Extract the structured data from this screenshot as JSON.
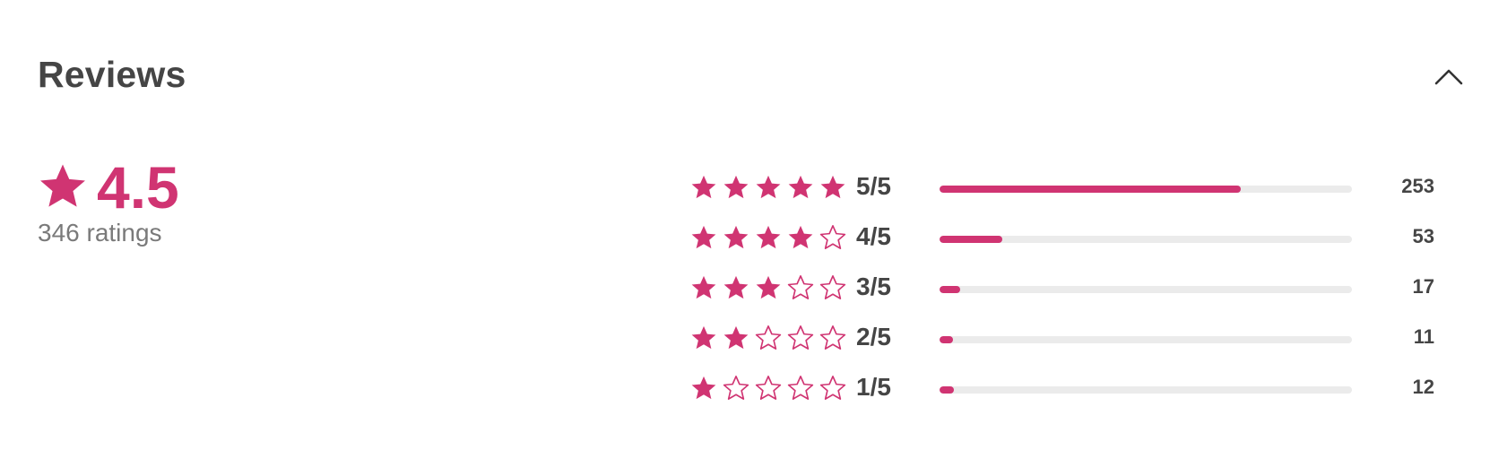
{
  "header": {
    "title": "Reviews",
    "collapse_icon": "chevron-up-icon"
  },
  "summary": {
    "average": "4.5",
    "ratings_text": "346 ratings",
    "star_icon": "star-filled-icon"
  },
  "accent_color": "#d03472",
  "breakdown": [
    {
      "stars": 5,
      "label": "5/5",
      "count": "253",
      "fraction": 0.73
    },
    {
      "stars": 4,
      "label": "4/5",
      "count": "53",
      "fraction": 0.153
    },
    {
      "stars": 3,
      "label": "3/5",
      "count": "17",
      "fraction": 0.049
    },
    {
      "stars": 2,
      "label": "2/5",
      "count": "11",
      "fraction": 0.032
    },
    {
      "stars": 1,
      "label": "1/5",
      "count": "12",
      "fraction": 0.035
    }
  ]
}
